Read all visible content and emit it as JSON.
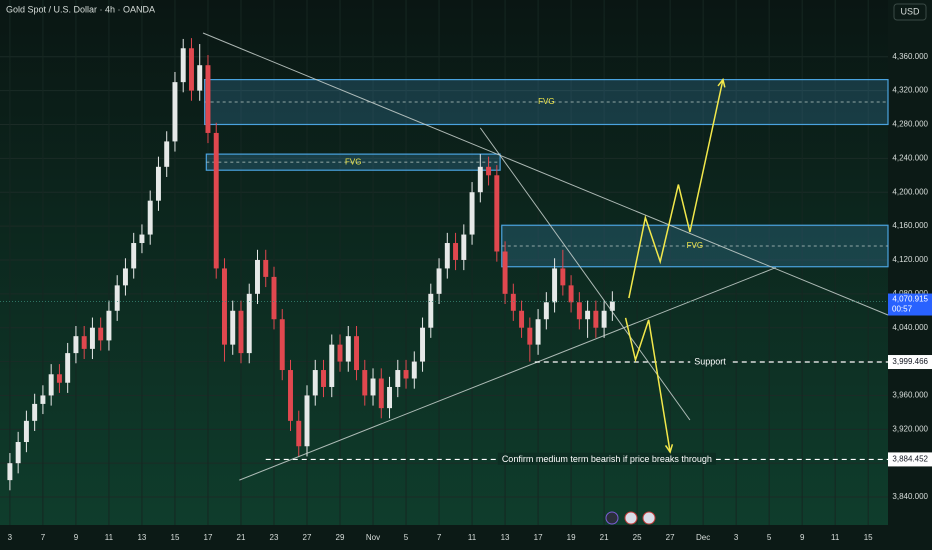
{
  "chart_data": {
    "type": "candlestick",
    "title": "Gold Spot / U.S. Dollar · 4h · OANDA",
    "currency": "USD",
    "x": [
      0,
      0.5,
      1,
      1.5,
      2,
      2.5,
      3,
      3.5,
      4,
      4.5,
      5,
      5.5,
      6,
      6.5,
      7,
      7.5,
      8,
      8.5,
      9,
      9.5,
      10,
      10.5,
      11,
      11.5,
      12,
      12.5,
      13,
      13.5,
      14,
      14.5,
      15,
      15.5,
      16,
      16.5,
      17,
      17.5,
      18,
      18.5,
      19,
      19.5,
      20,
      20.5,
      21,
      21.5,
      22,
      22.5,
      23,
      23.5,
      24,
      24.5,
      25,
      25.5,
      26,
      26.5,
      27,
      27.5,
      28,
      28.5,
      29,
      29.5,
      30,
      30.5,
      31,
      31.5,
      32,
      32.5,
      33,
      33.5,
      34,
      34.5,
      35,
      35.5,
      36,
      36.5
    ],
    "open": [
      3860,
      3880,
      3905,
      3930,
      3950,
      3960,
      3985,
      3975,
      4010,
      4030,
      4015,
      4040,
      4025,
      4060,
      4090,
      4110,
      4140,
      4150,
      4190,
      4230,
      4260,
      4330,
      4370,
      4320,
      4350,
      4270,
      4110,
      4020,
      4060,
      4010,
      4080,
      4120,
      4100,
      4050,
      3990,
      3930,
      3900,
      3960,
      3990,
      3970,
      4020,
      4000,
      4030,
      3990,
      3960,
      3980,
      3945,
      3970,
      3990,
      3980,
      4000,
      4040,
      4080,
      4110,
      4140,
      4120,
      4150,
      4200,
      4230,
      4220,
      4130,
      4080,
      4060,
      4040,
      4020,
      4050,
      4070,
      4110,
      4090,
      4070,
      4050,
      4060,
      4040,
      4060
    ],
    "high": [
      3892,
      3917,
      3942,
      3962,
      3972,
      3997,
      3997,
      4022,
      4042,
      4042,
      4052,
      4052,
      4072,
      4102,
      4122,
      4152,
      4162,
      4202,
      4242,
      4272,
      4342,
      4381,
      4382,
      4375,
      4362,
      4282,
      4122,
      4072,
      4072,
      4092,
      4132,
      4132,
      4112,
      4062,
      4002,
      3942,
      3972,
      4002,
      4002,
      4032,
      4032,
      4042,
      4042,
      4002,
      3992,
      3992,
      3982,
      4002,
      4002,
      4012,
      4052,
      4092,
      4122,
      4152,
      4152,
      4162,
      4212,
      4245,
      4242,
      4232,
      4142,
      4092,
      4072,
      4052,
      4062,
      4082,
      4122,
      4132,
      4102,
      4082,
      4072,
      4072,
      4072,
      4083
    ],
    "low": [
      3848,
      3868,
      3893,
      3918,
      3938,
      3948,
      3963,
      3963,
      3998,
      4003,
      4003,
      4013,
      4013,
      4048,
      4078,
      4098,
      4128,
      4138,
      4178,
      4218,
      4248,
      4318,
      4308,
      4308,
      4258,
      4098,
      4000,
      4008,
      3998,
      3998,
      4068,
      4088,
      4038,
      3978,
      3918,
      3888,
      3888,
      3948,
      3958,
      3958,
      3988,
      3988,
      3978,
      3948,
      3948,
      3933,
      3933,
      3958,
      3968,
      3968,
      3988,
      4028,
      4068,
      4098,
      4108,
      4108,
      4138,
      4188,
      4208,
      4118,
      4068,
      4048,
      4028,
      4000,
      4008,
      4038,
      4058,
      4078,
      4058,
      4038,
      4028,
      4028,
      4028,
      4048
    ],
    "close": [
      3880,
      3905,
      3930,
      3950,
      3960,
      3985,
      3975,
      4010,
      4030,
      4015,
      4040,
      4025,
      4060,
      4090,
      4110,
      4140,
      4150,
      4190,
      4230,
      4260,
      4330,
      4370,
      4320,
      4350,
      4270,
      4110,
      4020,
      4060,
      4010,
      4080,
      4120,
      4100,
      4050,
      3990,
      3930,
      3900,
      3960,
      3990,
      3970,
      4020,
      4000,
      4030,
      3990,
      3960,
      3980,
      3945,
      3970,
      3990,
      3980,
      4000,
      4040,
      4080,
      4110,
      4140,
      4120,
      4150,
      4200,
      4230,
      4220,
      4130,
      4080,
      4060,
      4040,
      4020,
      4050,
      4070,
      4110,
      4090,
      4070,
      4050,
      4060,
      4040,
      4060,
      4071
    ],
    "up_color": "#e6e9e8",
    "down_color": "#e0484f",
    "xlim": [
      -0.6,
      53.2
    ],
    "xticks": [
      {
        "value": 0,
        "label": "3"
      },
      {
        "value": 2,
        "label": "7"
      },
      {
        "value": 4,
        "label": "9"
      },
      {
        "value": 6,
        "label": "11"
      },
      {
        "value": 8,
        "label": "13"
      },
      {
        "value": 10,
        "label": "15"
      },
      {
        "value": 12,
        "label": "17"
      },
      {
        "value": 14,
        "label": "21"
      },
      {
        "value": 16,
        "label": "23"
      },
      {
        "value": 18,
        "label": "27"
      },
      {
        "value": 20,
        "label": "29"
      },
      {
        "value": 22,
        "label": "Nov"
      },
      {
        "value": 24,
        "label": "5"
      },
      {
        "value": 26,
        "label": "7"
      },
      {
        "value": 28,
        "label": "11"
      },
      {
        "value": 30,
        "label": "13"
      },
      {
        "value": 32,
        "label": "17"
      },
      {
        "value": 34,
        "label": "19"
      },
      {
        "value": 36,
        "label": "21"
      },
      {
        "value": 38,
        "label": "25"
      },
      {
        "value": 40,
        "label": "27"
      },
      {
        "value": 42,
        "label": "Dec"
      },
      {
        "value": 44,
        "label": "3"
      },
      {
        "value": 46,
        "label": "5"
      },
      {
        "value": 48,
        "label": "9"
      },
      {
        "value": 50,
        "label": "11"
      },
      {
        "value": 52,
        "label": "15"
      }
    ],
    "ylim": [
      3807,
      4427
    ],
    "yticks": [
      {
        "value": 3840,
        "label": "3,840.000"
      },
      {
        "value": 3880,
        "label": "3,880.000"
      },
      {
        "value": 3920,
        "label": "3,920.000"
      },
      {
        "value": 3960,
        "label": "3,960.000"
      },
      {
        "value": 4000,
        "label": "4,000.000"
      },
      {
        "value": 4040,
        "label": "4,040.000"
      },
      {
        "value": 4080,
        "label": "4,080.000"
      },
      {
        "value": 4120,
        "label": "4,120.000"
      },
      {
        "value": 4160,
        "label": "4,160.000"
      },
      {
        "value": 4200,
        "label": "4,200.000"
      },
      {
        "value": 4240,
        "label": "4,240.000"
      },
      {
        "value": 4280,
        "label": "4,280.000"
      },
      {
        "value": 4320,
        "label": "4,320.000"
      },
      {
        "value": 4360,
        "label": "4,360.000"
      }
    ],
    "last_price": {
      "value": 4070.915,
      "label": "4,070.915"
    },
    "countdown": "00:57",
    "zones": [
      {
        "label": "FVG",
        "from": 4280,
        "to": 4333,
        "start": 11.8
      },
      {
        "label": "FVG",
        "from": 4226,
        "to": 4245,
        "start": 11.9,
        "end": 29.7
      },
      {
        "label": "FVG",
        "from": 4112,
        "to": 4161,
        "start": 29.8
      }
    ],
    "levels": [
      {
        "label": "Support",
        "value": 3999.466,
        "value_label": "3,999.466",
        "start": 31.8
      },
      {
        "label": "Confirm medium term bearish if price breaks through",
        "value": 3884.452,
        "value_label": "3,884.452",
        "start": 15.5
      }
    ],
    "trendlines": [
      {
        "x": [
          11.7,
          53.2
        ],
        "y": [
          4388,
          4055
        ]
      },
      {
        "x": [
          13.9,
          46.4
        ],
        "y": [
          3860,
          4111
        ]
      },
      {
        "x": [
          28.5,
          41.2
        ],
        "y": [
          4276,
          3931
        ]
      }
    ],
    "projections": [
      {
        "x": [
          37.5,
          38.5,
          39.4,
          40.5,
          41.2,
          43.2
        ],
        "y": [
          4075,
          4170,
          4118,
          4209,
          4153,
          4333
        ]
      },
      {
        "x": [
          37.3,
          37.9,
          38.7,
          40.0
        ],
        "y": [
          4051.6,
          4002,
          4049.2,
          3893.2
        ]
      }
    ],
    "projection_color": "#f2e84b",
    "zone_color": "#4aa3df"
  }
}
